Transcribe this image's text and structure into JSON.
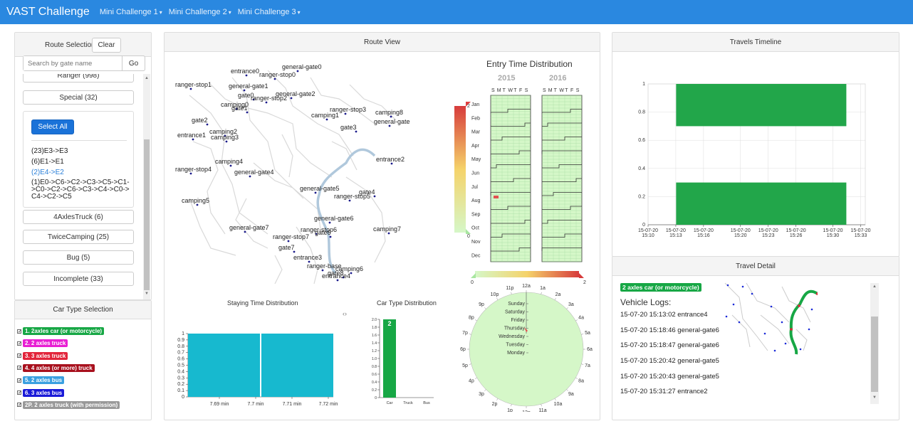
{
  "nav": {
    "brand": "VAST Challenge",
    "items": [
      "Mini Challenge 1",
      "Mini Challenge 2",
      "Mini Challenge 3"
    ]
  },
  "route_selection": {
    "title": "Route Selection",
    "clear_label": "Clear",
    "search_placeholder": "Search by gate name",
    "go_label": "Go",
    "top_cut_label": "Ranger (998)",
    "special_label": "Special (32)",
    "select_all_label": "Select All",
    "routes": [
      "(23)E3->E3",
      "(6)E1->E1",
      "(2)E4->E2",
      "(1)E0->C6->C2->C3->C5->C1->C0->C2->C6->C3->C4->C0->C4->C2->C5"
    ],
    "groups": [
      "4AxlesTruck (6)",
      "TwiceCamping (25)",
      "Bug (5)",
      "Incomplete (33)"
    ]
  },
  "car_type_selection": {
    "title": "Car Type Selection",
    "types": [
      {
        "label": "1. 2axles car (or motorcycle)",
        "color": "#17a745"
      },
      {
        "label": "2. 2 axles truck",
        "color": "#e81fd3"
      },
      {
        "label": "3. 3 axles truck",
        "color": "#e2243a"
      },
      {
        "label": "4. 4 axles (or more) truck",
        "color": "#a8101d"
      },
      {
        "label": "5. 2 axles bus",
        "color": "#3aa0e0"
      },
      {
        "label": "6. 3 axles bus",
        "color": "#1a1ad8"
      },
      {
        "label": "2P. 2 axles truck (with permission)",
        "color": "#999999"
      }
    ]
  },
  "route_view": {
    "title": "Route View",
    "map_labels": [
      "general-gate0",
      "entrance0",
      "ranger-stop0",
      "ranger-stop1",
      "general-gate1",
      "gate0",
      "ranger-stop2",
      "general-gate2",
      "camping0",
      "gate1",
      "ranger-stop3",
      "camping8",
      "camping1",
      "general-gate",
      "gate2",
      "gate3",
      "entrance1",
      "camping2",
      "camping3",
      "entrance2",
      "camping4",
      "ranger-stop4",
      "general-gate4",
      "general-gate5",
      "gate4",
      "ranger-stop5",
      "camping5",
      "general-gate6",
      "camping7",
      "general-gate7",
      "ranger-stop6",
      "gate6",
      "ranger-stop7",
      "gate7",
      "entrance3",
      "ranger-base",
      "camping6",
      "gate8",
      "entrance4"
    ]
  },
  "entry_time": {
    "title": "Entry Time Distribution",
    "years": [
      "2015",
      "2016"
    ],
    "weekdays": [
      "S",
      "M",
      "T",
      "W",
      "T",
      "F",
      "S"
    ],
    "months": [
      "Jan",
      "Feb",
      "Mar",
      "Apr",
      "May",
      "Jun",
      "Jul",
      "Aug",
      "Sep",
      "Oct",
      "Nov",
      "Dec"
    ],
    "legend_max": "2",
    "legend_min": "0"
  },
  "staying_time": {
    "title": "Staying Time Distribution",
    "expand_icon": "expand-icon"
  },
  "car_type_dist": {
    "title": "Car Type Distribution"
  },
  "clock": {
    "legend_min": "0",
    "legend_max": "2",
    "hours": [
      "12a",
      "1a",
      "2a",
      "3a",
      "4a",
      "5a",
      "6a",
      "7a",
      "8a",
      "9a",
      "10a",
      "11a",
      "12p",
      "1p",
      "2p",
      "3p",
      "4p",
      "5p",
      "6p",
      "7p",
      "8p",
      "9p",
      "10p",
      "11p"
    ],
    "days": [
      "Sunday",
      "Saturday",
      "Friday",
      "Thursday",
      "Wednesday",
      "Tuesday",
      "Monday"
    ]
  },
  "travels_timeline": {
    "title": "Travels Timeline"
  },
  "travel_detail": {
    "title": "Travel Detail",
    "badge": "2 axles car (or motorcycle)",
    "logs_title": "Vehicle Logs:",
    "logs": [
      "15-07-20 15:13:02 entrance4",
      "15-07-20 15:18:46 general-gate6",
      "15-07-20 15:18:47 general-gate6",
      "15-07-20 15:20:42 general-gate5",
      "15-07-20 15:20:43 general-gate5",
      "15-07-20 15:31:27 entrance2"
    ]
  },
  "chart_data": [
    {
      "type": "bar",
      "name": "staying-time",
      "title": "Staying Time Distribution",
      "x_ticks": [
        "7.69 min",
        "7.7 min",
        "7.71 min",
        "7.72 min"
      ],
      "y_ticks": [
        "0",
        "0.1",
        "0.2",
        "0.3",
        "0.4",
        "0.5",
        "0.6",
        "0.7",
        "0.8",
        "0.9",
        "1"
      ],
      "values": [
        1,
        1
      ],
      "ylim": [
        0,
        1
      ]
    },
    {
      "type": "bar",
      "name": "car-type",
      "title": "Car Type Distribution",
      "categories": [
        "Car",
        "Truck",
        "Bus"
      ],
      "values": [
        2,
        0,
        0
      ],
      "data_labels": [
        "2"
      ],
      "y_ticks": [
        "0",
        "0.2",
        "0.4",
        "0.6",
        "0.8",
        "1.0",
        "1.2",
        "1.4",
        "1.6",
        "1.8",
        "2.0"
      ],
      "ylim": [
        0,
        2
      ]
    },
    {
      "type": "bar",
      "name": "travels-timeline",
      "title": "Travels Timeline",
      "x_ticks": [
        [
          "15-07-20",
          "15:10"
        ],
        [
          "15-07-20",
          "15:13"
        ],
        [
          "15-07-20",
          "15:16"
        ],
        [
          "15-07-20",
          "15:20"
        ],
        [
          "15-07-20",
          "15:23"
        ],
        [
          "15-07-20",
          "15:26"
        ],
        [
          "15-07-20",
          "15:30"
        ],
        [
          "15-07-20",
          "15:33"
        ]
      ],
      "y_ticks": [
        "0",
        "0.2",
        "0.4",
        "0.6",
        "0.8",
        "1"
      ],
      "bars": [
        {
          "start": "15:13:02",
          "end": "15:31:27",
          "y0": 0.7,
          "y1": 1.0
        },
        {
          "start": "15:13:02",
          "end": "15:31:27",
          "y0": 0.0,
          "y1": 0.3
        }
      ],
      "ylim": [
        0,
        1
      ]
    }
  ],
  "colors": {
    "accent": "#2a88e0",
    "bar": "#17b9cf",
    "car_green": "#17a745",
    "calendar_green": "#d5f7c8"
  }
}
